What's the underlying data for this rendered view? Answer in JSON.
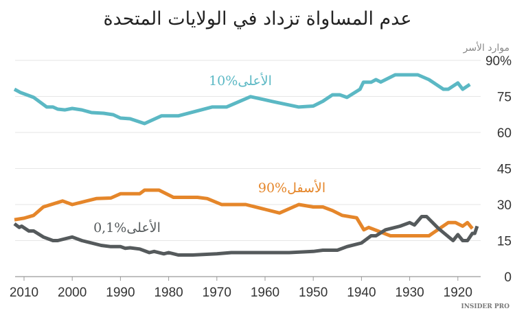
{
  "chart_data": {
    "type": "line",
    "title": "عدم المساواة تزداد في الولايات المتحدة",
    "ylabel": "موارد الأسر",
    "xlim": [
      2013,
      1913
    ],
    "x_reversed": true,
    "ylim": [
      0,
      90
    ],
    "y_ticks": [
      "0",
      "15",
      "30",
      "45",
      "60",
      "75",
      "90%"
    ],
    "y_tick_values": [
      0,
      15,
      30,
      45,
      60,
      75,
      90
    ],
    "x_ticks": [
      "2010",
      "2000",
      "1990",
      "1980",
      "1970",
      "1960",
      "1950",
      "1940",
      "1930",
      "1920"
    ],
    "x_tick_values": [
      2010,
      2000,
      1990,
      1980,
      1970,
      1960,
      1950,
      1940,
      1930,
      1920
    ],
    "grid": true,
    "series": [
      {
        "name": "10%الأعلى",
        "color": "#5bb8c4",
        "x": [
          2012,
          2010.7,
          2008,
          2005.3,
          2004,
          2003,
          2001.5,
          2000,
          1998,
          1996,
          1993.5,
          1991.5,
          1990,
          1988,
          1985,
          1981.5,
          1978,
          1971,
          1968,
          1963,
          1958.5,
          1953,
          1950,
          1948,
          1946,
          1944.5,
          1943,
          1940.3,
          1939.6,
          1938,
          1937,
          1936,
          1933,
          1928.3,
          1926,
          1923,
          1922,
          1920,
          1919,
          1917.5
        ],
        "y": [
          78,
          76.6,
          74.6,
          70.6,
          70.6,
          69.7,
          69.4,
          70,
          69.4,
          68.3,
          68,
          67.4,
          66,
          65.7,
          63.7,
          66.9,
          66.9,
          70.6,
          70.6,
          74.9,
          72.9,
          70.6,
          71,
          73,
          75.7,
          75.7,
          74.6,
          78,
          80.9,
          80.9,
          82,
          81,
          84,
          84,
          82,
          78,
          78,
          80.6,
          78,
          80
        ]
      },
      {
        "name": "90%الأسفل",
        "color": "#e5862a",
        "x": [
          2012,
          2010,
          2008,
          2006,
          2002,
          2000,
          1995,
          1992,
          1990,
          1986,
          1985,
          1982,
          1979,
          1974,
          1972,
          1969,
          1964,
          1960,
          1957,
          1953,
          1950,
          1948,
          1946,
          1944,
          1941,
          1939.5,
          1938.5,
          1934,
          1926,
          1922,
          1920.5,
          1919,
          1918,
          1917
        ],
        "y": [
          23.7,
          24.3,
          25.5,
          29,
          31.5,
          30,
          32.5,
          32.7,
          34.5,
          34.5,
          36,
          36,
          33,
          33,
          32.5,
          30,
          30,
          28,
          26.5,
          30,
          29,
          29,
          27.5,
          25.5,
          24.5,
          19.5,
          20.5,
          17,
          17,
          22.5,
          22.5,
          21,
          22.5,
          20
        ]
      },
      {
        "name": "0,1%الأعلى",
        "color": "#555a5c",
        "x": [
          2012,
          2011,
          2010.5,
          2009,
          2008,
          2006,
          2004,
          2003,
          2001,
          2000,
          1998,
          1994,
          1992,
          1990,
          1989,
          1988,
          1986,
          1984,
          1983,
          1981,
          1980,
          1978,
          1975,
          1970,
          1967,
          1965,
          1960,
          1955,
          1950,
          1948,
          1945,
          1943,
          1940,
          1938,
          1937,
          1935,
          1932,
          1930,
          1929,
          1927.5,
          1926.5,
          1924,
          1921,
          1920,
          1919,
          1918,
          1917,
          1916.5,
          1916
        ],
        "y": [
          22,
          20.5,
          21,
          19,
          19,
          16.5,
          15,
          15,
          16,
          16.5,
          15,
          13,
          12.5,
          12.5,
          11.8,
          12,
          11.5,
          10,
          10.5,
          9.5,
          10,
          9,
          9,
          9.5,
          10,
          10,
          10,
          10,
          10.5,
          11,
          11,
          12.5,
          14,
          17,
          17,
          19.5,
          21,
          22.5,
          21.5,
          25,
          25,
          20,
          15,
          17.5,
          15,
          15,
          18,
          18,
          21
        ]
      }
    ]
  },
  "brand": "INSIDER PRO"
}
